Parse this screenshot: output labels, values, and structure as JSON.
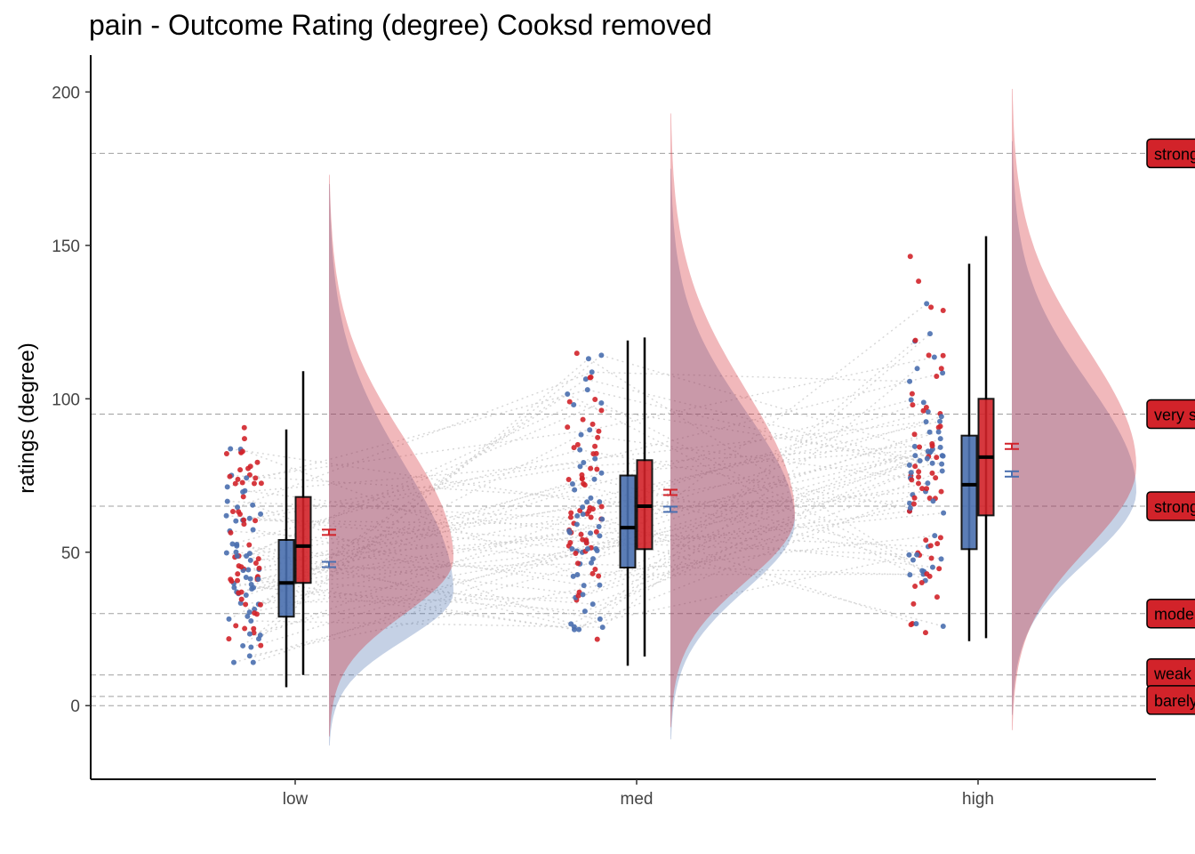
{
  "chart_data": {
    "type": "raincloud",
    "title": "pain  - Outcome Rating (degree) Cooksd removed",
    "xlabel": "",
    "ylabel": "ratings (degree)",
    "ylim": [
      -24,
      212
    ],
    "yticks": [
      0,
      50,
      100,
      150,
      200
    ],
    "categories": [
      "low",
      "med",
      "high"
    ],
    "grid": false,
    "legend": "none",
    "series": [
      {
        "color": "#4a6faf",
        "box": [
          {
            "min": 6,
            "q1": 29,
            "median": 40,
            "q3": 54,
            "max": 90
          },
          {
            "min": 13,
            "q1": 45,
            "median": 58,
            "q3": 75,
            "max": 119
          },
          {
            "min": 21,
            "q1": 51,
            "median": 72,
            "q3": 88,
            "max": 144
          }
        ],
        "mean": [
          46,
          64,
          75.5
        ],
        "density": [
          {
            "min": -13,
            "max": 170,
            "mode": 37
          },
          {
            "min": -11,
            "max": 175,
            "mode": 60
          },
          {
            "min": -3,
            "max": 184,
            "mode": 70
          }
        ]
      },
      {
        "color": "#d2232a",
        "box": [
          {
            "min": 10,
            "q1": 40,
            "median": 52,
            "q3": 68,
            "max": 109
          },
          {
            "min": 16,
            "q1": 51,
            "median": 65,
            "q3": 80,
            "max": 120
          },
          {
            "min": 22,
            "q1": 62,
            "median": 81,
            "q3": 100,
            "max": 153
          }
        ],
        "mean": [
          56.5,
          69.5,
          84.5
        ],
        "density": [
          {
            "min": -10,
            "max": 173,
            "mode": 48
          },
          {
            "min": -7,
            "max": 193,
            "mode": 62
          },
          {
            "min": -8,
            "max": 201,
            "mode": 78
          }
        ]
      }
    ],
    "reference_lines": [
      {
        "value": 180,
        "label": "strongest imaginable"
      },
      {
        "value": 95,
        "label": "very strong"
      },
      {
        "value": 65,
        "label": "strong"
      },
      {
        "value": 30,
        "label": "moderate"
      },
      {
        "value": 10,
        "label": "weak"
      },
      {
        "value": 3,
        "label": "barely detectable"
      },
      {
        "value": 0,
        "label": ""
      }
    ],
    "colors": {
      "blue": "#4a6faf",
      "red": "#d2232a",
      "label_fill": "#d2232a",
      "guide": "#a0a0a0",
      "pair_line": "#cccccc"
    }
  }
}
